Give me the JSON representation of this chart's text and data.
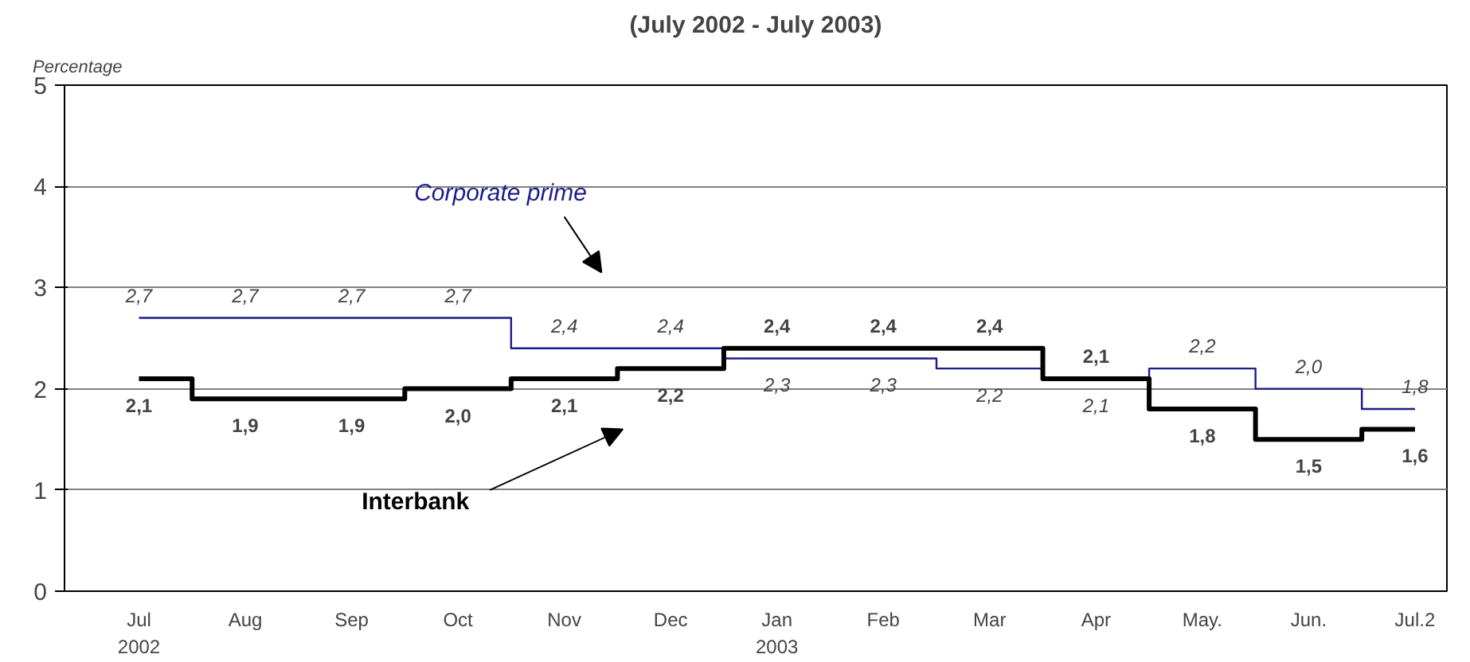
{
  "chart_data": {
    "type": "step",
    "title": "(July 2002 - July 2003)",
    "ylabel": "Percentage",
    "categories": [
      "Jul\n2002",
      "Aug",
      "Sep",
      "Oct",
      "Nov",
      "Dec",
      "Jan\n2003",
      "Feb",
      "Mar",
      "Apr",
      "May.",
      "Jun.",
      "Jul.2"
    ],
    "series": [
      {
        "name": "Corporate prime",
        "color": "#1c1c8c",
        "values": [
          2.7,
          2.7,
          2.7,
          2.7,
          2.4,
          2.4,
          2.3,
          2.3,
          2.2,
          2.1,
          2.2,
          2.0,
          1.8
        ],
        "value_labels": [
          "2,7",
          "2,7",
          "2,7",
          "2,7",
          "2,4",
          "2,4",
          "2,3",
          "2,3",
          "2,2",
          "2,1",
          "2,2",
          "2,0",
          "1,8"
        ]
      },
      {
        "name": "Interbank",
        "color": "#000000",
        "values": [
          2.1,
          1.9,
          1.9,
          2.0,
          2.1,
          2.2,
          2.4,
          2.4,
          2.4,
          2.1,
          1.8,
          1.5,
          1.6
        ],
        "value_labels": [
          "2,1",
          "1,9",
          "1,9",
          "2,0",
          "2,1",
          "2,2",
          "2,4",
          "2,4",
          "2,4",
          "2,1",
          "1,8",
          "1,5",
          "1,6"
        ]
      }
    ],
    "ylim": [
      0,
      5
    ],
    "yticks": [
      0,
      1,
      2,
      3,
      4,
      5
    ],
    "grid": "y",
    "line_style": "solid"
  }
}
